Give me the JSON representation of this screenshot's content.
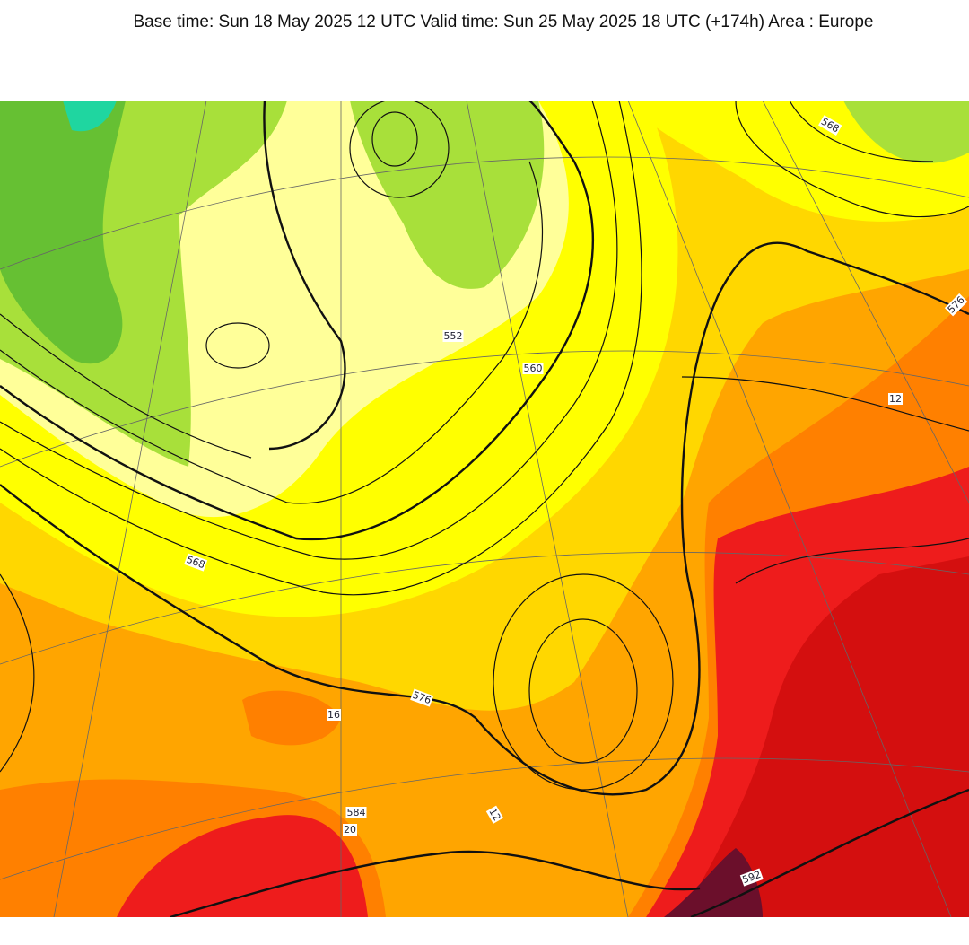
{
  "header": {
    "title": "Base time: Sun 18 May 2025 12 UTC Valid time: Sun 25 May 2025 18 UTC (+174h) Area : Europe"
  },
  "map": {
    "contour_labels": [
      "568",
      "576",
      "584",
      "592",
      "560",
      "552",
      "576",
      "568",
      "16",
      "12",
      "12",
      "20"
    ]
  }
}
